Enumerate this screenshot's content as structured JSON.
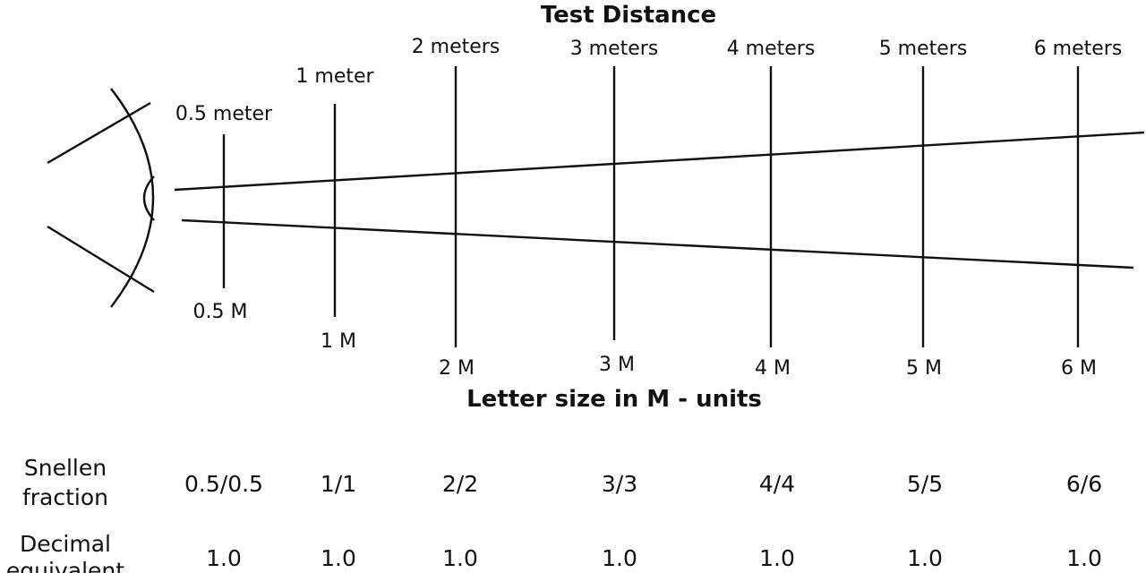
{
  "diagram": {
    "title_top": "Test Distance",
    "title_middle": "Letter size in M - units",
    "positions": [
      {
        "distance_label": "0.5 meter",
        "size_label": "0.5 M",
        "snellen": "0.5/0.5",
        "decimal": "1.0"
      },
      {
        "distance_label": "1 meter",
        "size_label": "1 M",
        "snellen": "1/1",
        "decimal": "1.0"
      },
      {
        "distance_label": "2 meters",
        "size_label": "2 M",
        "snellen": "2/2",
        "decimal": "1.0"
      },
      {
        "distance_label": "3 meters",
        "size_label": "3 M",
        "snellen": "3/3",
        "decimal": "1.0"
      },
      {
        "distance_label": "4 meters",
        "size_label": "4 M",
        "snellen": "4/4",
        "decimal": "1.0"
      },
      {
        "distance_label": "5 meters",
        "size_label": "5 M",
        "snellen": "5/5",
        "decimal": "1.0"
      },
      {
        "distance_label": "6 meters",
        "size_label": "6 M",
        "snellen": "6/6",
        "decimal": "1.0"
      }
    ],
    "rows": {
      "snellen_line1": "Snellen",
      "snellen_line2": "fraction",
      "decimal_line1": "Decimal",
      "decimal_line2": "equivalent"
    },
    "icons": {
      "eye": "eye-icon"
    }
  }
}
